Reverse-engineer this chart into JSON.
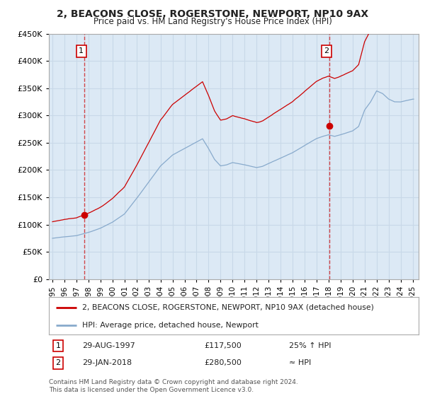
{
  "title": "2, BEACONS CLOSE, ROGERSTONE, NEWPORT, NP10 9AX",
  "subtitle": "Price paid vs. HM Land Registry's House Price Index (HPI)",
  "sale1_date": "29-AUG-1997",
  "sale1_price": 117500,
  "sale1_label": "25% ↑ HPI",
  "sale2_date": "29-JAN-2018",
  "sale2_price": 280500,
  "sale2_label": "≈ HPI",
  "legend1": "2, BEACONS CLOSE, ROGERSTONE, NEWPORT, NP10 9AX (detached house)",
  "legend2": "HPI: Average price, detached house, Newport",
  "footer": "Contains HM Land Registry data © Crown copyright and database right 2024.\nThis data is licensed under the Open Government Licence v3.0.",
  "red_color": "#cc0000",
  "blue_color": "#88aacc",
  "bg_color": "#dce9f5",
  "grid_color": "#c8d8e8",
  "ylim": [
    0,
    450000
  ],
  "yticks": [
    0,
    50000,
    100000,
    150000,
    200000,
    250000,
    300000,
    350000,
    400000,
    450000
  ],
  "sale1_year": 1997.65,
  "sale2_year": 2018.08,
  "xmin": 1995.0,
  "xmax": 2025.5
}
